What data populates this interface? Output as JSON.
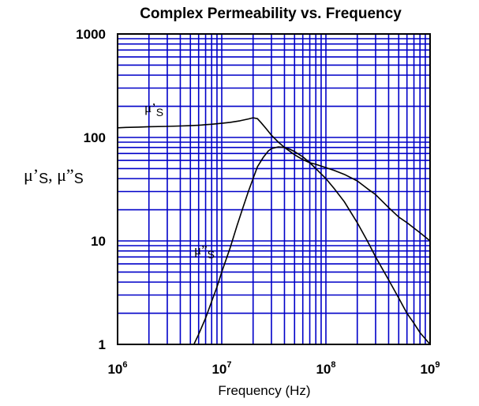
{
  "chart_data": {
    "type": "line",
    "title": "Complex Permeability vs. Frequency",
    "xlabel": "Frequency (Hz)",
    "ylabel": {
      "main": "μ’",
      "sub1": "S",
      "sep": ", μ”",
      "sub2": "S"
    },
    "x_scale": "log",
    "y_scale": "log",
    "xlim": [
      1000000,
      1000000000
    ],
    "ylim": [
      1,
      1000
    ],
    "x_ticks": [
      {
        "base": "10",
        "exp": "6"
      },
      {
        "base": "10",
        "exp": "7"
      },
      {
        "base": "10",
        "exp": "8"
      },
      {
        "base": "10",
        "exp": "9"
      }
    ],
    "y_ticks": [
      "1000",
      "100",
      "10",
      "1"
    ],
    "grid": true,
    "grid_color": "#0000c8",
    "series": [
      {
        "label_main": "μ’",
        "label_sub": "S",
        "x": [
          1000000,
          1200000,
          1600000,
          2000000,
          3000000,
          4000000,
          5000000,
          6000000,
          7000000,
          8000000,
          10000000,
          12000000,
          15000000,
          18000000,
          20000000,
          22000000,
          24000000,
          27000000,
          30000000,
          35000000,
          40000000,
          50000000,
          60000000,
          70000000,
          80000000,
          100000000,
          120000000,
          150000000,
          200000000,
          250000000,
          300000000,
          400000000,
          500000000,
          600000000,
          800000000,
          1000000000
        ],
        "values": [
          124,
          125,
          126,
          127,
          128,
          129,
          130,
          131,
          133,
          134,
          137,
          140,
          145,
          151,
          155,
          152,
          138,
          120,
          105,
          90,
          80,
          68,
          61,
          57,
          55,
          51,
          48,
          44,
          38,
          32,
          28,
          21,
          17,
          15,
          12,
          10
        ]
      },
      {
        "label_main": "μ”",
        "label_sub": "S",
        "x": [
          5400000,
          6000000,
          7000000,
          8000000,
          9000000,
          10000000,
          12000000,
          14000000,
          16000000,
          18000000,
          20000000,
          22000000,
          25000000,
          28000000,
          30000000,
          35000000,
          40000000,
          45000000,
          50000000,
          60000000,
          70000000,
          80000000,
          100000000,
          120000000,
          150000000,
          200000000,
          250000000,
          300000000,
          400000000,
          500000000,
          600000000,
          700000000,
          800000000,
          1000000000
        ],
        "values": [
          1,
          1.25,
          1.8,
          2.6,
          3.6,
          5,
          8.5,
          14,
          21,
          30,
          40,
          52,
          64,
          74,
          78,
          81,
          80,
          77,
          73,
          65,
          57,
          50,
          40,
          32,
          24,
          15,
          10,
          7,
          4.2,
          2.8,
          2,
          1.6,
          1.3,
          1
        ]
      }
    ]
  }
}
